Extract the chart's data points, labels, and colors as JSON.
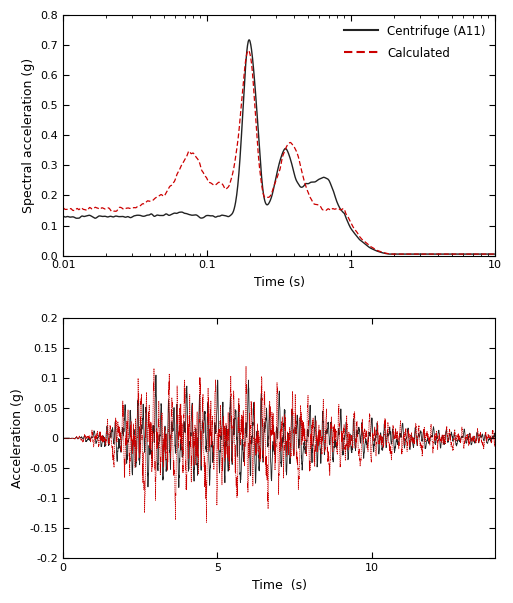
{
  "top_plot": {
    "ylabel": "Spectral acceleration (g)",
    "xlabel": "Time (s)",
    "xlim_log": [
      0.01,
      10
    ],
    "ylim": [
      0,
      0.8
    ],
    "yticks": [
      0.0,
      0.1,
      0.2,
      0.3,
      0.4,
      0.5,
      0.6,
      0.7,
      0.8
    ],
    "legend_centrifuge": "Centrifuge (A11)",
    "legend_calculated": "Calculated",
    "centrifuge_color": "#222222",
    "calculated_color": "#cc0000"
  },
  "bottom_plot": {
    "ylabel": "Acceleration (g)",
    "xlabel": "Time  (s)",
    "xlim": [
      0,
      14
    ],
    "ylim": [
      -0.2,
      0.2
    ],
    "yticks": [
      -0.2,
      -0.15,
      -0.1,
      -0.05,
      0.0,
      0.05,
      0.1,
      0.15,
      0.2
    ],
    "xticks": [
      0,
      5,
      10
    ],
    "centrifuge_color": "#222222",
    "calculated_color": "#cc0000"
  },
  "figure_bgcolor": "#ffffff"
}
